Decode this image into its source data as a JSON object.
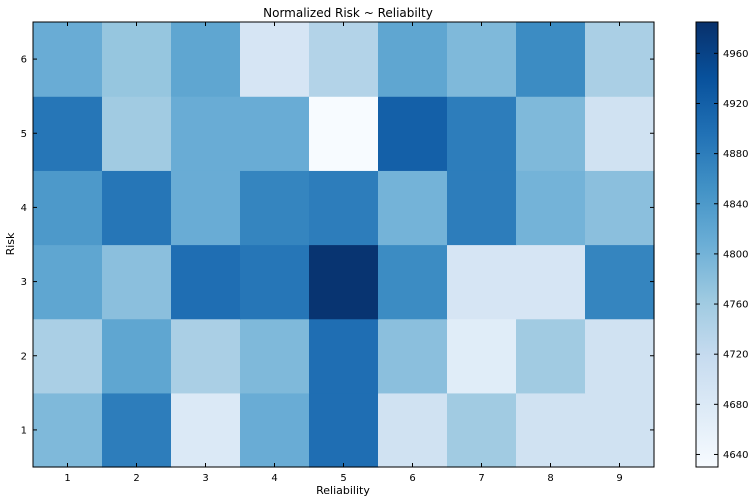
{
  "chart_data": {
    "type": "heatmap",
    "title": "Normalized Risk ~ Reliabilty",
    "xlabel": "Reliability",
    "ylabel": "Risk",
    "x_categories": [
      "1",
      "2",
      "3",
      "4",
      "5",
      "6",
      "7",
      "8",
      "9"
    ],
    "y_categories": [
      "1",
      "2",
      "3",
      "4",
      "5",
      "6"
    ],
    "values_by_row": {
      "6": [
        4810,
        4770,
        4820,
        4690,
        4740,
        4820,
        4790,
        4860,
        4750
      ],
      "5": [
        4890,
        4760,
        4810,
        4810,
        4630,
        4920,
        4880,
        4790,
        4700
      ],
      "4": [
        4840,
        4890,
        4810,
        4870,
        4880,
        4800,
        4880,
        4800,
        4780
      ],
      "3": [
        4820,
        4780,
        4900,
        4890,
        4980,
        4860,
        4690,
        4690,
        4870
      ],
      "2": [
        4750,
        4820,
        4750,
        4790,
        4900,
        4780,
        4670,
        4760,
        4700
      ],
      "1": [
        4790,
        4880,
        4680,
        4810,
        4900,
        4700,
        4760,
        4700,
        4700
      ]
    },
    "colorbar": {
      "min": 4630,
      "max": 4985,
      "ticks": [
        4640,
        4680,
        4720,
        4760,
        4800,
        4840,
        4880,
        4920,
        4960
      ],
      "colormap": "Blues"
    }
  }
}
